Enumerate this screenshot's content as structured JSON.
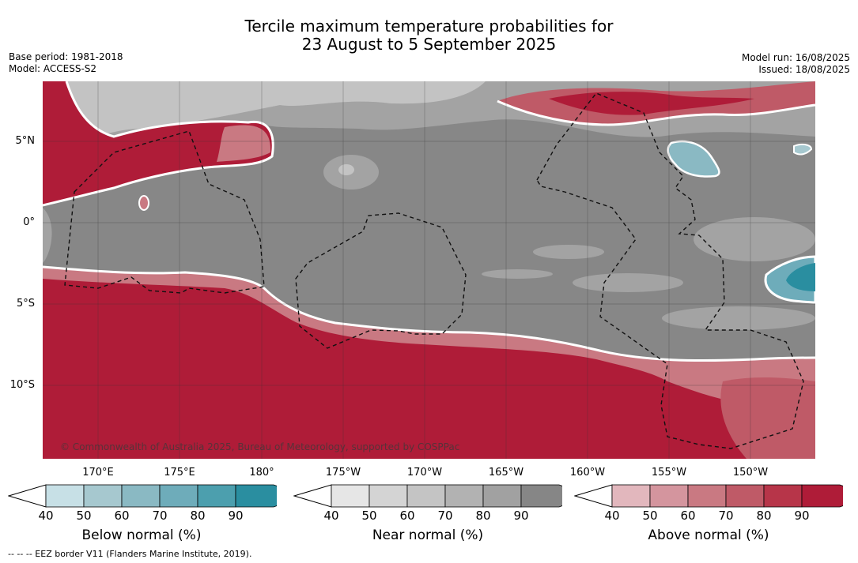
{
  "title_line1": "Tercile maximum temperature probabilities for",
  "title_line2": "23 August to 5 September 2025",
  "meta_left": [
    "Base period: 1981-2018",
    "Model: ACCESS-S2"
  ],
  "meta_right": [
    "Model run: 16/08/2025",
    "Issued: 18/08/2025"
  ],
  "lat_labels": [
    "5°N",
    "0°",
    "5°S",
    "10°S"
  ],
  "lon_labels": [
    "170°E",
    "175°E",
    "180°",
    "175°W",
    "170°W",
    "165°W",
    "160°W",
    "155°W",
    "150°W"
  ],
  "copyright": "© Commonwealth of Australia 2025, Bureau of Meteorology, supported by COSPPac",
  "colorbars": [
    {
      "label": "Below normal (%)",
      "ticks": [
        "40",
        "50",
        "60",
        "70",
        "80",
        "90"
      ],
      "colors": [
        "#c7e0e6",
        "#a6c8cf",
        "#8ab9c3",
        "#6eacba",
        "#4c9fae",
        "#2a8ea0"
      ]
    },
    {
      "label": "Near normal (%)",
      "ticks": [
        "40",
        "50",
        "60",
        "70",
        "80",
        "90"
      ],
      "colors": [
        "#e6e6e6",
        "#d4d4d4",
        "#c4c4c4",
        "#b2b2b2",
        "#a1a1a1",
        "#868686"
      ]
    },
    {
      "label": "Above normal (%)",
      "ticks": [
        "40",
        "50",
        "60",
        "70",
        "80",
        "90"
      ],
      "colors": [
        "#e2b7bd",
        "#d4959e",
        "#c97982",
        "#bf5a67",
        "#b73549",
        "#af1c38"
      ]
    }
  ],
  "footnote": "-- -- -- EEZ border V11 (Flanders Marine Institute, 2019)."
}
